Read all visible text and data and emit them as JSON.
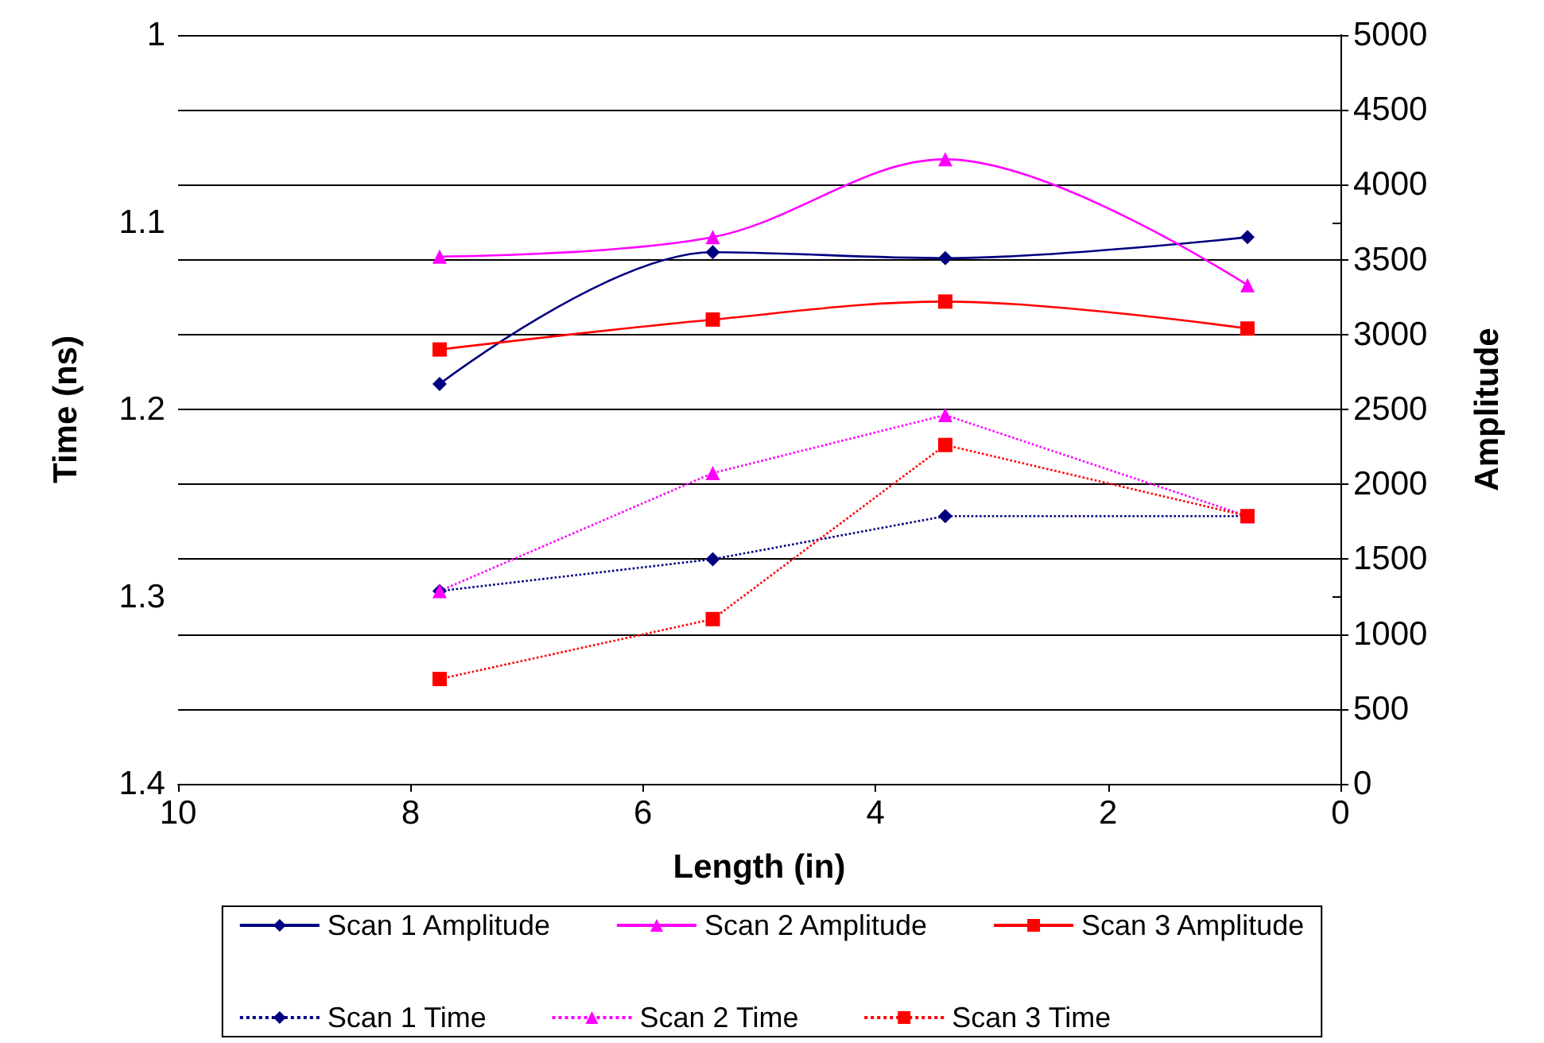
{
  "chart_data": {
    "type": "line",
    "xlabel": "Length (in)",
    "ylabel": "Time (ns)",
    "y2label": "Amplitude",
    "x": [
      7.75,
      5.4,
      3.4,
      0.8
    ],
    "xlim": [
      10,
      0
    ],
    "xticks": [
      10,
      8,
      6,
      4,
      2,
      0
    ],
    "ylim": [
      1.4,
      1
    ],
    "yticks": [
      1,
      1.1,
      1.2,
      1.3,
      1.4
    ],
    "y2lim": [
      0,
      5000
    ],
    "y2ticks": [
      0,
      500,
      1000,
      1500,
      2000,
      2500,
      3000,
      3500,
      4000,
      4500,
      5000
    ],
    "grid": "y",
    "legend": "bottom",
    "series": [
      {
        "name": "Scan 1 Amplitude",
        "color": "#000080",
        "axis": "y2",
        "marker": "diamond",
        "line_style": "solid",
        "values": [
          2670,
          3550,
          3510,
          3650
        ]
      },
      {
        "name": "Scan 2 Amplitude",
        "color": "#ff00ff",
        "axis": "y2",
        "marker": "triangle",
        "line_style": "solid",
        "values": [
          3520,
          3650,
          4170,
          3330
        ]
      },
      {
        "name": "Scan 3 Amplitude",
        "color": "#ff0000",
        "axis": "y2",
        "marker": "square",
        "line_style": "solid",
        "values": [
          2900,
          3100,
          3220,
          3040
        ]
      },
      {
        "name": "Scan 1 Time",
        "color": "#000080",
        "axis": "y",
        "marker": "diamond",
        "line_style": "dotted",
        "values": [
          1.297,
          1.28,
          1.257,
          1.257
        ]
      },
      {
        "name": "Scan 2 Time",
        "color": "#ff00ff",
        "axis": "y",
        "marker": "triangle",
        "line_style": "dotted",
        "values": [
          1.297,
          1.234,
          1.203,
          1.257
        ]
      },
      {
        "name": "Scan 3 Time",
        "color": "#ff0000",
        "axis": "y",
        "marker": "square",
        "line_style": "dotted",
        "values": [
          1.344,
          1.312,
          1.219,
          1.257
        ]
      }
    ]
  }
}
